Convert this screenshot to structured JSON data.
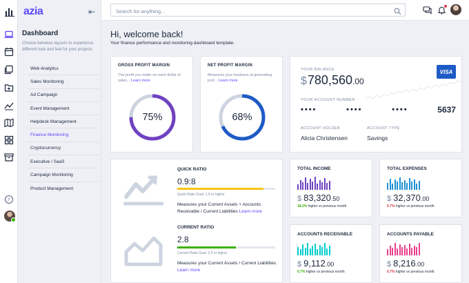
{
  "app": {
    "logo": "azia",
    "collapse_icon": "collapse-left-icon"
  },
  "rail": {
    "icons": [
      "laptop-icon",
      "calendar-icon",
      "layers-icon",
      "folder-icon",
      "chart-line-icon",
      "map-icon",
      "grid-icon",
      "archive-icon",
      "help-icon"
    ]
  },
  "sidebar": {
    "title": "Dashboard",
    "description": "Choose between layouts to experience different look and feel for your projects",
    "items": [
      {
        "label": "Web Analytics"
      },
      {
        "label": "Sales Monitoring"
      },
      {
        "label": "Ad Campaign"
      },
      {
        "label": "Event Management"
      },
      {
        "label": "Helpdesk Management"
      },
      {
        "label": "Finance Monitoring",
        "active": true
      },
      {
        "label": "Cryptocurrency"
      },
      {
        "label": "Executive / SaaS"
      },
      {
        "label": "Campaign Monitoring"
      },
      {
        "label": "Product Management"
      }
    ]
  },
  "header": {
    "search_placeholder": "Search for anything...",
    "icons": [
      "search-icon",
      "chat-icon",
      "bell-icon"
    ]
  },
  "welcome": {
    "title": "Hi, welcome back!",
    "subtitle": "Your finance performance and monitoring dashboard template."
  },
  "gross": {
    "title": "Gross Profit Margin",
    "desc": "The profit you make on each dollar of sales... ",
    "link": "Learn more",
    "percent": 75,
    "value": "75%",
    "color": "#6f42c1"
  },
  "net": {
    "title": "Net Profit Margin",
    "desc": "Measures your business at generating prof... ",
    "link": "Learn more",
    "percent": 68,
    "value": "68%",
    "color": "#1e5bc6"
  },
  "balance": {
    "label": "Your Balance",
    "currency": "$",
    "amount": "780,560",
    "decimals": ".00",
    "card_brand": "VISA",
    "account_label": "Your Account Number",
    "account_dots": [
      "••••",
      "••••",
      "••••"
    ],
    "account_last": "5637",
    "holder_label": "Account Holder",
    "holder": "Alicia Christensen",
    "type_label": "Account Type",
    "type": "Savings"
  },
  "quick": {
    "title": "Quick Ratio",
    "value": "0.9:8",
    "progress": 0.88,
    "color": "#f5c518",
    "goal": "Quick Ratio Goal: 1.0 or higher",
    "desc": "Measures your Current Assets + Accounts Receivable / Current Liabilities ",
    "link": "Learn more"
  },
  "current": {
    "title": "Current Ratio",
    "value": "2.8",
    "progress": 0.6,
    "color": "#3bb001",
    "goal": "Current Ratio Goal: 2.0 or higher",
    "desc": "Measures your Current Assets / Current Liabilities. ",
    "link": "Learn more"
  },
  "stats": {
    "income": {
      "title": "Total Income",
      "currency": "$",
      "amount": "83,320",
      "decimals": ".50",
      "change": "18.2%",
      "change_text": " higher vs previous month",
      "trend": "pos",
      "color": "#6f42c1",
      "bars": [
        0.4,
        0.7,
        0.55,
        0.9,
        0.5,
        0.8,
        0.6,
        0.95,
        0.45,
        0.7,
        0.55,
        0.85,
        0.5,
        0.65
      ]
    },
    "expenses": {
      "title": "Total Expenses",
      "currency": "$",
      "amount": "32,370",
      "decimals": ".00",
      "change": "0.7%",
      "change_text": " higher vs previous month",
      "trend": "neg",
      "color": "#1e90d6",
      "bars": [
        0.5,
        0.8,
        0.45,
        0.75,
        0.6,
        0.9,
        0.55,
        0.7,
        0.5,
        0.85,
        0.6,
        0.75,
        0.45,
        0.65
      ]
    },
    "receivable": {
      "title": "Accounts Receivable",
      "currency": "$",
      "amount": "9,112",
      "decimals": ".00",
      "change": "0.7%",
      "change_text": " higher vs previous month",
      "trend": "pos",
      "color": "#00cccc",
      "bars": [
        0.6,
        0.45,
        0.8,
        0.55,
        0.9,
        0.5,
        0.7,
        0.85,
        0.45,
        0.75,
        0.6,
        0.9,
        0.5,
        0.7
      ]
    },
    "payable": {
      "title": "Accounts Payable",
      "currency": "$",
      "amount": "8,216",
      "decimals": ".00",
      "change": "0.7%",
      "change_text": " higher vs previous month",
      "trend": "neg",
      "color": "#e83e8c",
      "bars": [
        0.45,
        0.7,
        0.55,
        0.9,
        0.5,
        0.8,
        0.6,
        0.75,
        0.5,
        0.85,
        0.55,
        0.7,
        0.6,
        0.9
      ]
    }
  }
}
